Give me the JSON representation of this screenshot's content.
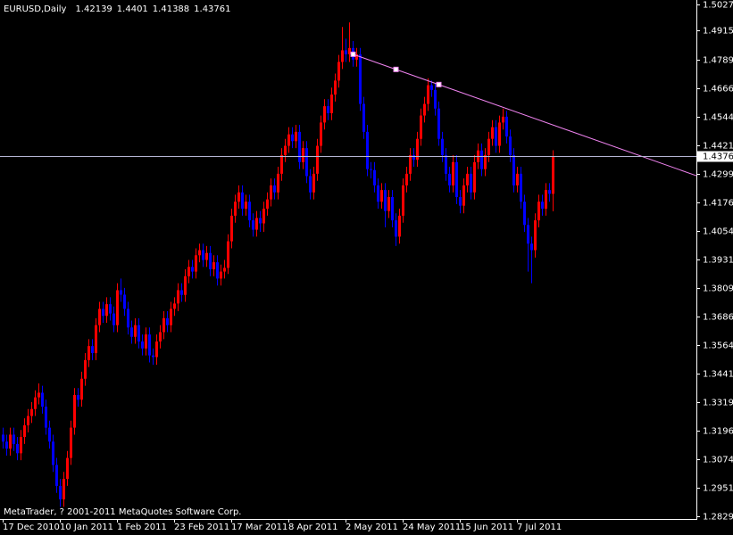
{
  "chart_data": {
    "type": "candlestick",
    "title": "EURUSD,Daily",
    "footer": "MetaTrader, ? 2001-2011 MetaQuotes Software Corp.",
    "up_color": "#ff0000",
    "down_color": "#0000ff",
    "background": "#000000",
    "axis_color": "#ffffff",
    "bid_line_color": "#b4b4d2",
    "categories": [
      "17 Dec 2010",
      null,
      null,
      null,
      null,
      null,
      null,
      null,
      null,
      null,
      null,
      null,
      null,
      null,
      null,
      null,
      "10 Jan 2011",
      null,
      null,
      null,
      null,
      null,
      null,
      null,
      null,
      null,
      null,
      null,
      null,
      null,
      null,
      null,
      "1 Feb 2011",
      null,
      null,
      null,
      null,
      null,
      null,
      null,
      null,
      null,
      null,
      null,
      null,
      null,
      null,
      null,
      "23 Feb 2011",
      null,
      null,
      null,
      null,
      null,
      null,
      null,
      null,
      null,
      null,
      null,
      null,
      null,
      null,
      null,
      "17 Mar 2011",
      null,
      null,
      null,
      null,
      null,
      null,
      null,
      null,
      null,
      null,
      null,
      null,
      null,
      null,
      null,
      "8 Apr 2011",
      null,
      null,
      null,
      null,
      null,
      null,
      null,
      null,
      null,
      null,
      null,
      null,
      null,
      null,
      null,
      "2 May 2011",
      null,
      null,
      null,
      null,
      null,
      null,
      null,
      null,
      null,
      null,
      null,
      null,
      null,
      null,
      null,
      "24 May 2011",
      null,
      null,
      null,
      null,
      null,
      null,
      null,
      null,
      null,
      null,
      null,
      null,
      null,
      null,
      null,
      "15 Jun 2011",
      null,
      null,
      null,
      null,
      null,
      null,
      null,
      null,
      null,
      null,
      null,
      null,
      null,
      null,
      null,
      "7 Jul 2011",
      null,
      null,
      null,
      null,
      null,
      null,
      null,
      null,
      null,
      null
    ],
    "open": [
      1.318,
      1.315,
      1.312,
      1.318,
      1.314,
      1.31,
      1.317,
      1.322,
      1.326,
      1.329,
      1.334,
      1.336,
      1.33,
      1.321,
      1.315,
      1.305,
      1.296,
      1.2902,
      1.299,
      1.308,
      1.321,
      1.335,
      1.333,
      1.342,
      1.35,
      1.356,
      1.353,
      1.365,
      1.372,
      1.369,
      1.374,
      1.37,
      1.365,
      1.38,
      1.3781,
      1.372,
      1.364,
      1.36,
      1.365,
      1.358,
      1.355,
      1.361,
      1.352,
      1.3513,
      1.358,
      1.362,
      1.368,
      1.365,
      1.372,
      1.3743,
      1.38,
      1.378,
      1.386,
      1.39,
      1.388,
      1.395,
      1.3972,
      1.393,
      1.396,
      1.389,
      1.392,
      1.385,
      1.388,
      1.3896,
      1.401,
      1.412,
      1.418,
      1.422,
      1.415,
      1.418,
      1.41,
      1.406,
      1.411,
      1.4087,
      1.415,
      1.419,
      1.425,
      1.422,
      1.43,
      1.438,
      1.442,
      1.4469,
      1.444,
      1.448,
      1.435,
      1.441,
      1.429,
      1.422,
      1.43,
      1.442,
      1.452,
      1.459,
      1.456,
      1.464,
      1.47,
      1.478,
      1.483,
      1.4813,
      1.484,
      1.479,
      1.4813,
      1.46,
      1.448,
      1.432,
      1.4316,
      1.425,
      1.418,
      1.423,
      1.414,
      1.42,
      1.41,
      1.403,
      1.412,
      1.425,
      1.43,
      1.438,
      1.436,
      1.445,
      1.455,
      1.46,
      1.468,
      1.466,
      1.458,
      1.445,
      1.438,
      1.43,
      1.425,
      1.435,
      1.42,
      1.4163,
      1.425,
      1.43,
      1.422,
      1.435,
      1.44,
      1.432,
      1.438,
      1.445,
      1.45,
      1.442,
      1.452,
      1.4545,
      1.446,
      1.438,
      1.425,
      1.43,
      1.418,
      1.408,
      1.4,
      1.3972,
      1.41,
      1.418,
      1.415,
      1.423,
      1.42139
    ],
    "high": [
      1.321,
      1.318,
      1.321,
      1.321,
      1.317,
      1.32,
      1.325,
      1.329,
      1.332,
      1.337,
      1.34,
      1.339,
      1.333,
      1.324,
      1.318,
      1.308,
      1.299,
      1.302,
      1.311,
      1.324,
      1.338,
      1.338,
      1.345,
      1.353,
      1.359,
      1.359,
      1.368,
      1.375,
      1.375,
      1.377,
      1.377,
      1.373,
      1.383,
      1.385,
      1.381,
      1.375,
      1.367,
      1.368,
      1.368,
      1.361,
      1.364,
      1.364,
      1.355,
      1.361,
      1.365,
      1.371,
      1.371,
      1.375,
      1.377,
      1.383,
      1.383,
      1.389,
      1.393,
      1.393,
      1.398,
      1.4,
      1.4,
      1.399,
      1.399,
      1.395,
      1.395,
      1.391,
      1.393,
      1.404,
      1.415,
      1.421,
      1.425,
      1.425,
      1.421,
      1.421,
      1.413,
      1.414,
      1.414,
      1.418,
      1.422,
      1.428,
      1.428,
      1.433,
      1.441,
      1.445,
      1.45,
      1.45,
      1.451,
      1.451,
      1.444,
      1.444,
      1.432,
      1.433,
      1.445,
      1.455,
      1.462,
      1.462,
      1.467,
      1.473,
      1.481,
      1.493,
      1.488,
      1.495,
      1.487,
      1.484,
      1.484,
      1.463,
      1.451,
      1.435,
      1.435,
      1.428,
      1.426,
      1.426,
      1.423,
      1.423,
      1.413,
      1.415,
      1.428,
      1.433,
      1.441,
      1.441,
      1.448,
      1.458,
      1.463,
      1.471,
      1.47,
      1.469,
      1.461,
      1.448,
      1.441,
      1.433,
      1.438,
      1.438,
      1.423,
      1.428,
      1.433,
      1.433,
      1.438,
      1.443,
      1.443,
      1.441,
      1.448,
      1.453,
      1.453,
      1.455,
      1.458,
      1.457,
      1.449,
      1.441,
      1.433,
      1.433,
      1.421,
      1.411,
      1.403,
      1.413,
      1.421,
      1.421,
      1.426,
      1.426,
      1.4401
    ],
    "low": [
      1.312,
      1.309,
      1.309,
      1.311,
      1.307,
      1.307,
      1.314,
      1.319,
      1.323,
      1.326,
      1.331,
      1.327,
      1.318,
      1.312,
      1.302,
      1.293,
      1.287,
      1.287,
      1.296,
      1.305,
      1.318,
      1.33,
      1.33,
      1.339,
      1.347,
      1.35,
      1.35,
      1.362,
      1.366,
      1.366,
      1.367,
      1.362,
      1.362,
      1.375,
      1.369,
      1.361,
      1.357,
      1.357,
      1.355,
      1.352,
      1.352,
      1.349,
      1.348,
      1.348,
      1.355,
      1.359,
      1.362,
      1.362,
      1.369,
      1.371,
      1.375,
      1.375,
      1.383,
      1.385,
      1.385,
      1.392,
      1.39,
      1.39,
      1.386,
      1.386,
      1.382,
      1.382,
      1.385,
      1.387,
      1.398,
      1.409,
      1.415,
      1.412,
      1.412,
      1.407,
      1.403,
      1.403,
      1.405,
      1.405,
      1.412,
      1.416,
      1.419,
      1.419,
      1.427,
      1.435,
      1.439,
      1.441,
      1.441,
      1.432,
      1.432,
      1.426,
      1.419,
      1.419,
      1.427,
      1.439,
      1.449,
      1.453,
      1.453,
      1.461,
      1.467,
      1.475,
      1.478,
      1.478,
      1.476,
      1.476,
      1.457,
      1.445,
      1.429,
      1.428,
      1.422,
      1.415,
      1.415,
      1.407,
      1.411,
      1.407,
      1.399,
      1.4,
      1.409,
      1.422,
      1.427,
      1.433,
      1.433,
      1.442,
      1.452,
      1.457,
      1.463,
      1.455,
      1.442,
      1.435,
      1.427,
      1.422,
      1.422,
      1.417,
      1.413,
      1.413,
      1.422,
      1.419,
      1.419,
      1.432,
      1.429,
      1.429,
      1.435,
      1.442,
      1.439,
      1.439,
      1.449,
      1.443,
      1.435,
      1.422,
      1.422,
      1.415,
      1.405,
      1.388,
      1.383,
      1.394,
      1.407,
      1.412,
      1.412,
      1.418,
      1.41388
    ],
    "close": [
      1.315,
      1.312,
      1.318,
      1.314,
      1.31,
      1.317,
      1.322,
      1.326,
      1.329,
      1.334,
      1.336,
      1.33,
      1.321,
      1.315,
      1.305,
      1.296,
      1.2902,
      1.299,
      1.308,
      1.321,
      1.335,
      1.333,
      1.342,
      1.35,
      1.356,
      1.353,
      1.365,
      1.372,
      1.369,
      1.374,
      1.37,
      1.365,
      1.38,
      1.3781,
      1.372,
      1.364,
      1.36,
      1.365,
      1.358,
      1.355,
      1.361,
      1.352,
      1.3513,
      1.358,
      1.362,
      1.368,
      1.365,
      1.372,
      1.3743,
      1.38,
      1.378,
      1.386,
      1.39,
      1.388,
      1.395,
      1.3972,
      1.393,
      1.396,
      1.389,
      1.392,
      1.385,
      1.388,
      1.3896,
      1.401,
      1.412,
      1.418,
      1.422,
      1.415,
      1.418,
      1.41,
      1.406,
      1.411,
      1.4087,
      1.415,
      1.419,
      1.425,
      1.422,
      1.43,
      1.438,
      1.442,
      1.4469,
      1.444,
      1.448,
      1.435,
      1.441,
      1.429,
      1.422,
      1.43,
      1.442,
      1.452,
      1.459,
      1.456,
      1.464,
      1.47,
      1.478,
      1.483,
      1.4813,
      1.484,
      1.479,
      1.4813,
      1.46,
      1.448,
      1.432,
      1.4316,
      1.425,
      1.418,
      1.423,
      1.414,
      1.42,
      1.41,
      1.403,
      1.412,
      1.425,
      1.43,
      1.438,
      1.436,
      1.445,
      1.455,
      1.46,
      1.468,
      1.466,
      1.458,
      1.445,
      1.438,
      1.43,
      1.425,
      1.435,
      1.42,
      1.4163,
      1.425,
      1.43,
      1.422,
      1.435,
      1.44,
      1.432,
      1.438,
      1.445,
      1.45,
      1.442,
      1.452,
      1.4545,
      1.446,
      1.438,
      1.425,
      1.43,
      1.418,
      1.408,
      1.4,
      1.3972,
      1.41,
      1.418,
      1.415,
      1.423,
      1.42139,
      1.43761
    ],
    "ylim": [
      1.2818,
      1.5046
    ],
    "yticks": [
      {
        "value": 1.2829,
        "label": "1.28290"
      },
      {
        "value": 1.29515,
        "label": "1.29515"
      },
      {
        "value": 1.3074,
        "label": "1.30740"
      },
      {
        "value": 1.31965,
        "label": "1.31965"
      },
      {
        "value": 1.3319,
        "label": "1.33190"
      },
      {
        "value": 1.34415,
        "label": "1.34415"
      },
      {
        "value": 1.3564,
        "label": "1.35640"
      },
      {
        "value": 1.36865,
        "label": "1.36865"
      },
      {
        "value": 1.3809,
        "label": "1.38090"
      },
      {
        "value": 1.39315,
        "label": "1.39315"
      },
      {
        "value": 1.4054,
        "label": "1.40540"
      },
      {
        "value": 1.41765,
        "label": "1.41765"
      },
      {
        "value": 1.4299,
        "label": "1.42990"
      },
      {
        "value": 1.44215,
        "label": "1.44215"
      },
      {
        "value": 1.4544,
        "label": "1.45440"
      },
      {
        "value": 1.46665,
        "label": "1.46665"
      },
      {
        "value": 1.4789,
        "label": "1.47890"
      },
      {
        "value": 1.4915,
        "label": "1.49150"
      },
      {
        "value": 1.50275,
        "label": "1.50275"
      }
    ],
    "trendline": {
      "color": "#ee82ee",
      "x": [
        98,
        122
      ],
      "y": [
        1.4813,
        1.4683
      ]
    }
  }
}
